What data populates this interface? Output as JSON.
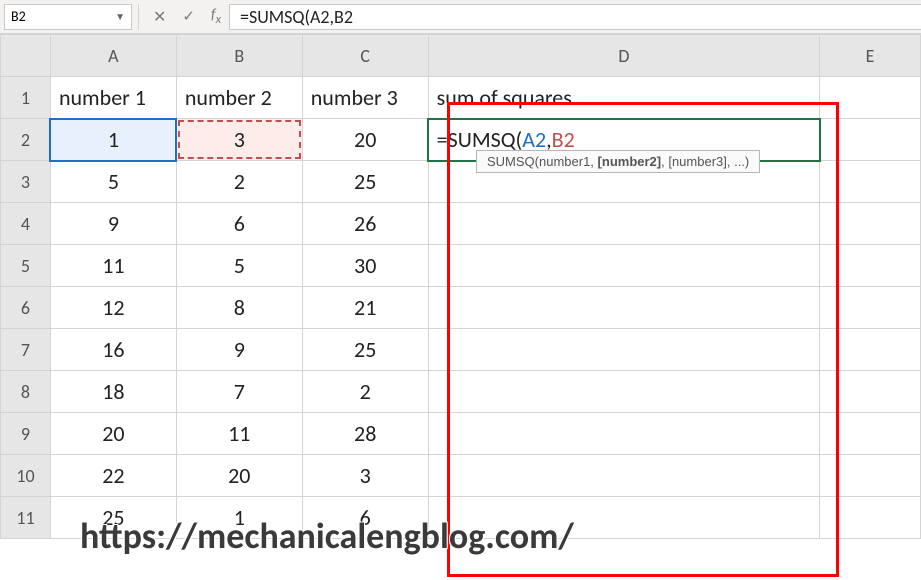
{
  "namebox": {
    "value": "B2"
  },
  "formula_bar": {
    "value": "=SUMSQ(A2,B2"
  },
  "tooltip": {
    "fn": "SUMSQ",
    "parts": [
      "(number1, ",
      "[number2]",
      ", [number3], ...)"
    ]
  },
  "columns": [
    "A",
    "B",
    "C",
    "D",
    "E"
  ],
  "rows": [
    "1",
    "2",
    "3",
    "4",
    "5",
    "6",
    "7",
    "8",
    "9",
    "10",
    "11"
  ],
  "data": {
    "headers": [
      "number 1",
      "number 2",
      "number 3",
      "sum of squares"
    ],
    "colA": [
      "1",
      "5",
      "9",
      "11",
      "12",
      "16",
      "18",
      "20",
      "22",
      "25"
    ],
    "colB": [
      "3",
      "2",
      "6",
      "5",
      "8",
      "9",
      "7",
      "11",
      "20",
      "1"
    ],
    "colC": [
      "20",
      "25",
      "26",
      "30",
      "21",
      "25",
      "2",
      "28",
      "3",
      "6"
    ]
  },
  "active_cell": {
    "prefix": "=SUMSQ(",
    "refA": "A2",
    "comma": ",",
    "refB": "B2"
  },
  "watermark": "https://mechanicalengblog.com/",
  "colors": {
    "refA": "#1f6fc5",
    "refB": "#c0504d",
    "activeBorder": "#217346",
    "redBox": "#ff0000",
    "grid": "#d4d4d4",
    "headerBg": "#e6e6e6"
  }
}
